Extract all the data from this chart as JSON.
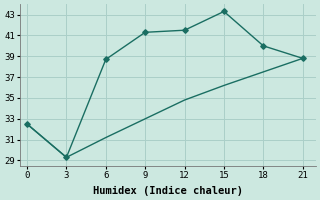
{
  "xlabel": "Humidex (Indice chaleur)",
  "bg_color": "#cce8e0",
  "line_color": "#1a6e62",
  "grid_color": "#aacfc8",
  "x_marked": [
    0,
    3,
    6,
    9,
    12,
    15,
    18,
    21
  ],
  "y_marked": [
    32.5,
    29.3,
    38.7,
    41.3,
    41.5,
    43.3,
    40.0,
    38.8
  ],
  "x_lower": [
    0,
    3,
    6,
    9,
    12,
    15,
    18,
    21
  ],
  "y_lower": [
    32.5,
    29.3,
    31.2,
    33.0,
    34.8,
    36.2,
    37.5,
    38.8
  ],
  "xlim": [
    -0.5,
    22
  ],
  "ylim": [
    28.5,
    44
  ],
  "xticks": [
    0,
    3,
    6,
    9,
    12,
    15,
    18,
    21
  ],
  "yticks": [
    29,
    31,
    33,
    35,
    37,
    39,
    41,
    43
  ],
  "marker": "D",
  "markersize": 2.8,
  "linewidth": 1.0,
  "tick_fontsize": 6.5,
  "label_fontsize": 7.5
}
